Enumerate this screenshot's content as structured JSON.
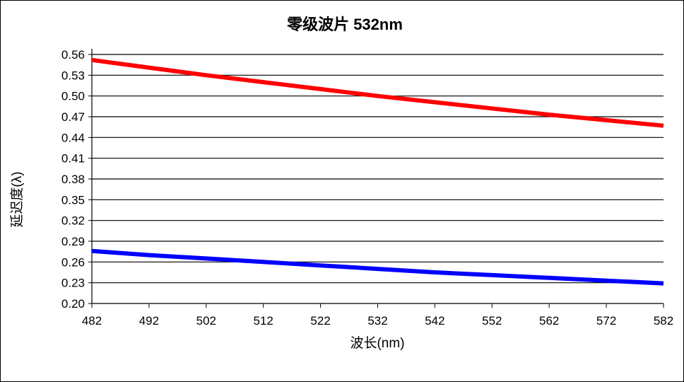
{
  "chart_data": {
    "type": "line",
    "title": "零级波片 532nm",
    "xlabel": "波长(nm)",
    "ylabel": "延迟度(λ)",
    "xlim": [
      482,
      582
    ],
    "ylim": [
      0.2,
      0.56
    ],
    "x_ticks": [
      "482",
      "492",
      "502",
      "512",
      "522",
      "532",
      "542",
      "552",
      "562",
      "572",
      "582"
    ],
    "y_ticks": [
      "0.20",
      "0.23",
      "0.26",
      "0.29",
      "0.32",
      "0.35",
      "0.38",
      "0.41",
      "0.44",
      "0.47",
      "0.50",
      "0.53",
      "0.56"
    ],
    "grid": "horizontal",
    "legend": "none",
    "x": [
      482,
      492,
      502,
      512,
      522,
      532,
      542,
      552,
      562,
      572,
      582
    ],
    "series": [
      {
        "color": "#ff0000",
        "values": [
          0.552,
          0.541,
          0.53,
          0.52,
          0.51,
          0.5,
          0.491,
          0.482,
          0.473,
          0.465,
          0.457
        ]
      },
      {
        "color": "#0000ff",
        "values": [
          0.276,
          0.27,
          0.265,
          0.26,
          0.255,
          0.25,
          0.245,
          0.241,
          0.237,
          0.233,
          0.229
        ]
      }
    ]
  }
}
